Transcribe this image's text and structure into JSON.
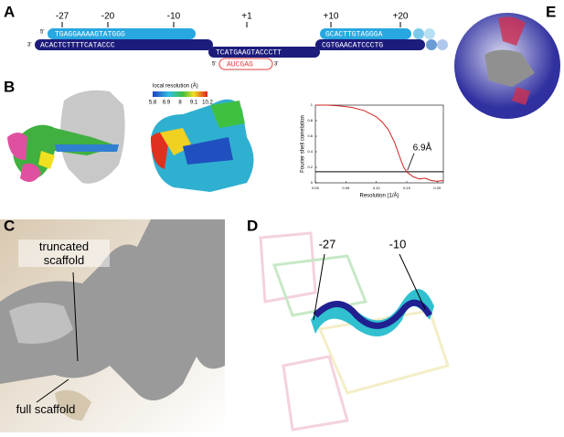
{
  "panel_a": {
    "label": "A",
    "positions": [
      "-27",
      "-20",
      "-10",
      "+1",
      "+10",
      "+20"
    ],
    "strands": {
      "top_left": "TGAGGAAAAGTATGGG",
      "bottom_left": "ACACTCTTTTCATACCC",
      "middle": "TCATGAAGTACCCTT",
      "bottom_right": "CGTGAACATCCCTG",
      "top_right": "GCACTTGTAGGGA",
      "rna": "AUCGAG"
    },
    "ends": {
      "five": "5'",
      "three": "3'"
    }
  },
  "panel_b": {
    "label": "B",
    "colorbar": {
      "title": "local resolution (Å)",
      "ticks": [
        5.8,
        6.9,
        8,
        9.1,
        10.2
      ]
    },
    "fsc": {
      "ylabel": "Fourier shell correlation",
      "xlabel": "Resolution (1/Å)",
      "x": [
        0,
        0.02,
        0.04,
        0.06,
        0.08,
        0.1,
        0.11,
        0.12,
        0.13,
        0.14,
        0.145,
        0.15,
        0.16,
        0.17,
        0.18,
        0.19,
        0.2,
        0.21
      ],
      "values": [
        1,
        1,
        0.99,
        0.97,
        0.93,
        0.85,
        0.78,
        0.68,
        0.52,
        0.3,
        0.2,
        0.14,
        0.08,
        0.05,
        0.06,
        0.03,
        0.02,
        0.03
      ],
      "threshold": 0.143,
      "annotation": "6.9Å",
      "xlim": [
        0,
        0.21
      ],
      "ylim": [
        0,
        1
      ],
      "xticks": [
        {
          "value": 0,
          "label": "0.00"
        },
        {
          "value": 0.05,
          "label": "0.05"
        },
        {
          "value": 0.1,
          "label": "0.10"
        },
        {
          "value": 0.15,
          "label": "0.15"
        },
        {
          "value": 0.2,
          "label": "0.20"
        }
      ],
      "yticks": [
        0,
        0.2,
        0.4,
        0.6,
        0.8,
        1
      ]
    }
  },
  "panel_c": {
    "label": "C",
    "annotations": [
      "truncated scaffold",
      "full scaffold"
    ]
  },
  "panel_d": {
    "label": "D",
    "annotations": [
      "-27",
      "-10"
    ]
  },
  "panel_e": {
    "label": "E"
  }
}
